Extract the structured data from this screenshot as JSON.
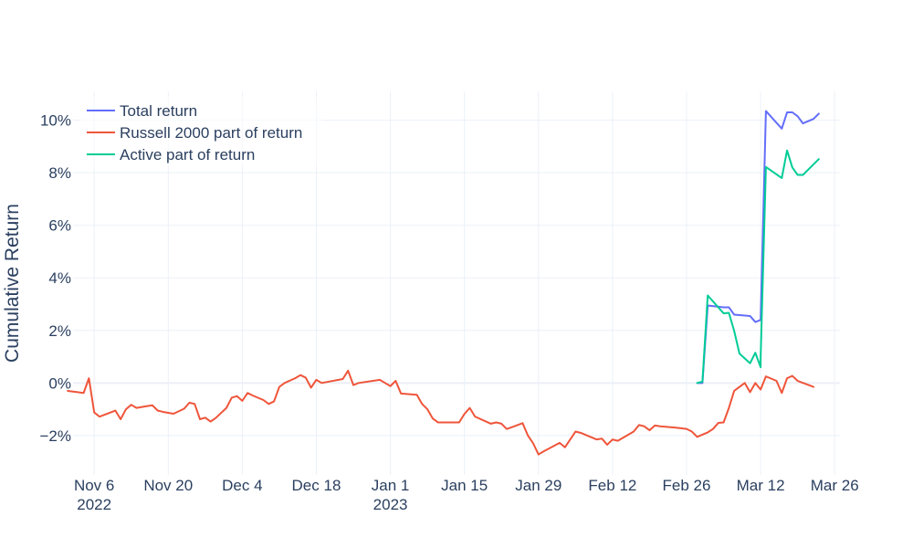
{
  "chart_data": {
    "type": "line",
    "title": "",
    "xlabel": "",
    "ylabel": "Cumulative Return",
    "y_unit": "%",
    "ylim": [
      -3.5,
      11.1
    ],
    "xlim": [
      "2022-11-02",
      "2023-03-27"
    ],
    "y_ticks": [
      {
        "value": -2,
        "label": "−2%"
      },
      {
        "value": 0,
        "label": "0%"
      },
      {
        "value": 2,
        "label": "2%"
      },
      {
        "value": 4,
        "label": "4%"
      },
      {
        "value": 6,
        "label": "6%"
      },
      {
        "value": 8,
        "label": "8%"
      },
      {
        "value": 10,
        "label": "10%"
      }
    ],
    "x_ticks": [
      {
        "date": "2022-11-06",
        "label": "Nov 6",
        "label2": "2022"
      },
      {
        "date": "2022-11-20",
        "label": "Nov 20",
        "label2": ""
      },
      {
        "date": "2022-12-04",
        "label": "Dec 4",
        "label2": ""
      },
      {
        "date": "2022-12-18",
        "label": "Dec 18",
        "label2": ""
      },
      {
        "date": "2023-01-01",
        "label": "Jan 1",
        "label2": "2023"
      },
      {
        "date": "2023-01-15",
        "label": "Jan 15",
        "label2": ""
      },
      {
        "date": "2023-01-29",
        "label": "Jan 29",
        "label2": ""
      },
      {
        "date": "2023-02-12",
        "label": "Feb 12",
        "label2": ""
      },
      {
        "date": "2023-02-26",
        "label": "Feb 26",
        "label2": ""
      },
      {
        "date": "2023-03-12",
        "label": "Mar 12",
        "label2": ""
      },
      {
        "date": "2023-03-26",
        "label": "Mar 26",
        "label2": ""
      }
    ],
    "grid": true,
    "legend_position": "top-left",
    "series": [
      {
        "name": "Total return",
        "color": "#636efa",
        "points": [
          [
            "2023-02-28",
            0.0
          ],
          [
            "2023-03-01",
            0.0
          ],
          [
            "2023-03-02",
            2.95
          ],
          [
            "2023-03-05",
            2.88
          ],
          [
            "2023-03-06",
            2.88
          ],
          [
            "2023-03-07",
            2.6
          ],
          [
            "2023-03-10",
            2.55
          ],
          [
            "2023-03-11",
            2.32
          ],
          [
            "2023-03-12",
            2.4
          ],
          [
            "2023-03-13",
            10.35
          ],
          [
            "2023-03-16",
            9.68
          ],
          [
            "2023-03-17",
            10.3
          ],
          [
            "2023-03-18",
            10.3
          ],
          [
            "2023-03-19",
            10.15
          ],
          [
            "2023-03-20",
            9.88
          ],
          [
            "2023-03-22",
            10.05
          ],
          [
            "2023-03-23",
            10.25
          ]
        ]
      },
      {
        "name": "Russell 2000 part of return",
        "color": "#ef553b",
        "points": [
          [
            "2022-11-01",
            -0.3
          ],
          [
            "2022-11-04",
            -0.38
          ],
          [
            "2022-11-05",
            0.18
          ],
          [
            "2022-11-06",
            -1.12
          ],
          [
            "2022-11-07",
            -1.28
          ],
          [
            "2022-11-09",
            -1.13
          ],
          [
            "2022-11-10",
            -1.05
          ],
          [
            "2022-11-11",
            -1.38
          ],
          [
            "2022-11-12",
            -1.0
          ],
          [
            "2022-11-13",
            -0.83
          ],
          [
            "2022-11-14",
            -0.95
          ],
          [
            "2022-11-16",
            -0.88
          ],
          [
            "2022-11-17",
            -0.85
          ],
          [
            "2022-11-18",
            -1.05
          ],
          [
            "2022-11-19",
            -1.1
          ],
          [
            "2022-11-21",
            -1.17
          ],
          [
            "2022-11-23",
            -0.98
          ],
          [
            "2022-11-24",
            -0.75
          ],
          [
            "2022-11-25",
            -0.8
          ],
          [
            "2022-11-26",
            -1.38
          ],
          [
            "2022-11-27",
            -1.32
          ],
          [
            "2022-11-28",
            -1.47
          ],
          [
            "2022-11-29",
            -1.33
          ],
          [
            "2022-12-01",
            -0.95
          ],
          [
            "2022-12-02",
            -0.56
          ],
          [
            "2022-12-03",
            -0.5
          ],
          [
            "2022-12-04",
            -0.68
          ],
          [
            "2022-12-05",
            -0.38
          ],
          [
            "2022-12-06",
            -0.48
          ],
          [
            "2022-12-08",
            -0.65
          ],
          [
            "2022-12-09",
            -0.8
          ],
          [
            "2022-12-10",
            -0.7
          ],
          [
            "2022-12-11",
            -0.15
          ],
          [
            "2022-12-12",
            0.0
          ],
          [
            "2022-12-14",
            0.18
          ],
          [
            "2022-12-15",
            0.3
          ],
          [
            "2022-12-16",
            0.2
          ],
          [
            "2022-12-17",
            -0.18
          ],
          [
            "2022-12-18",
            0.12
          ],
          [
            "2022-12-19",
            0.0
          ],
          [
            "2022-12-23",
            0.15
          ],
          [
            "2022-12-24",
            0.47
          ],
          [
            "2022-12-25",
            -0.08
          ],
          [
            "2022-12-26",
            0.0
          ],
          [
            "2022-12-30",
            0.12
          ],
          [
            "2022-12-31",
            0.0
          ],
          [
            "2023-01-01",
            -0.12
          ],
          [
            "2023-01-02",
            0.08
          ],
          [
            "2023-01-03",
            -0.4
          ],
          [
            "2023-01-06",
            -0.45
          ],
          [
            "2023-01-07",
            -0.8
          ],
          [
            "2023-01-08",
            -1.0
          ],
          [
            "2023-01-09",
            -1.35
          ],
          [
            "2023-01-10",
            -1.5
          ],
          [
            "2023-01-14",
            -1.5
          ],
          [
            "2023-01-15",
            -1.18
          ],
          [
            "2023-01-16",
            -0.95
          ],
          [
            "2023-01-17",
            -1.28
          ],
          [
            "2023-01-20",
            -1.55
          ],
          [
            "2023-01-21",
            -1.5
          ],
          [
            "2023-01-22",
            -1.55
          ],
          [
            "2023-01-23",
            -1.75
          ],
          [
            "2023-01-24",
            -1.68
          ],
          [
            "2023-01-26",
            -1.53
          ],
          [
            "2023-01-27",
            -2.0
          ],
          [
            "2023-01-28",
            -2.3
          ],
          [
            "2023-01-29",
            -2.72
          ],
          [
            "2023-01-30",
            -2.6
          ],
          [
            "2023-02-02",
            -2.28
          ],
          [
            "2023-02-03",
            -2.45
          ],
          [
            "2023-02-05",
            -1.85
          ],
          [
            "2023-02-06",
            -1.9
          ],
          [
            "2023-02-09",
            -2.15
          ],
          [
            "2023-02-10",
            -2.12
          ],
          [
            "2023-02-11",
            -2.35
          ],
          [
            "2023-02-12",
            -2.15
          ],
          [
            "2023-02-13",
            -2.2
          ],
          [
            "2023-02-16",
            -1.85
          ],
          [
            "2023-02-17",
            -1.6
          ],
          [
            "2023-02-18",
            -1.65
          ],
          [
            "2023-02-19",
            -1.8
          ],
          [
            "2023-02-20",
            -1.62
          ],
          [
            "2023-02-21",
            -1.65
          ],
          [
            "2023-02-24",
            -1.7
          ],
          [
            "2023-02-26",
            -1.75
          ],
          [
            "2023-02-27",
            -1.85
          ],
          [
            "2023-02-28",
            -2.05
          ],
          [
            "2023-03-02",
            -1.88
          ],
          [
            "2023-03-03",
            -1.75
          ],
          [
            "2023-03-04",
            -1.52
          ],
          [
            "2023-03-05",
            -1.5
          ],
          [
            "2023-03-06",
            -0.95
          ],
          [
            "2023-03-07",
            -0.3
          ],
          [
            "2023-03-09",
            0.0
          ],
          [
            "2023-03-10",
            -0.35
          ],
          [
            "2023-03-11",
            0.0
          ],
          [
            "2023-03-12",
            -0.25
          ],
          [
            "2023-03-13",
            0.25
          ],
          [
            "2023-03-15",
            0.08
          ],
          [
            "2023-03-16",
            -0.38
          ],
          [
            "2023-03-17",
            0.18
          ],
          [
            "2023-03-18",
            0.27
          ],
          [
            "2023-03-19",
            0.08
          ],
          [
            "2023-03-22",
            -0.15
          ]
        ]
      },
      {
        "name": "Active part of return",
        "color": "#00cc96",
        "points": [
          [
            "2023-02-28",
            0.0
          ],
          [
            "2023-03-01",
            0.05
          ],
          [
            "2023-03-02",
            3.33
          ],
          [
            "2023-03-05",
            2.65
          ],
          [
            "2023-03-06",
            2.67
          ],
          [
            "2023-03-07",
            1.98
          ],
          [
            "2023-03-08",
            1.12
          ],
          [
            "2023-03-10",
            0.75
          ],
          [
            "2023-03-11",
            1.15
          ],
          [
            "2023-03-12",
            0.6
          ],
          [
            "2023-03-12",
            0.95
          ],
          [
            "2023-03-13",
            8.22
          ],
          [
            "2023-03-16",
            7.8
          ],
          [
            "2023-03-17",
            8.85
          ],
          [
            "2023-03-18",
            8.2
          ],
          [
            "2023-03-19",
            7.92
          ],
          [
            "2023-03-20",
            7.92
          ],
          [
            "2023-03-23",
            8.52
          ]
        ]
      }
    ]
  }
}
